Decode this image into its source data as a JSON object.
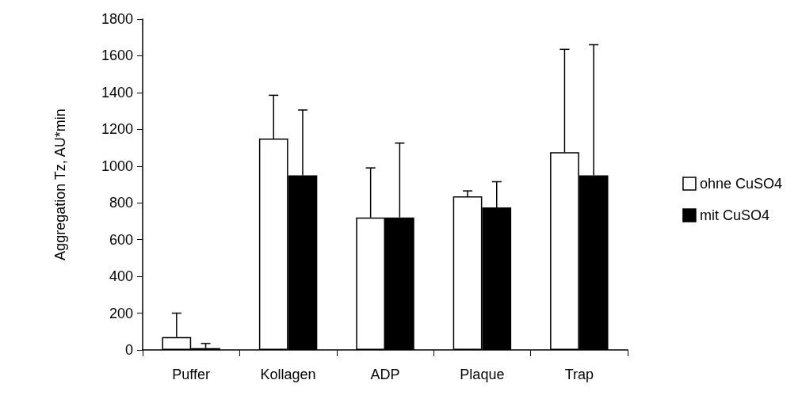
{
  "chart_data": {
    "type": "bar",
    "ylabel": "Aggregation Tz, AU*min",
    "categories": [
      "Puffer",
      "Kollagen",
      "ADP",
      "Plaque",
      "Trap"
    ],
    "series": [
      {
        "name": "ohne CuSO4",
        "color": "#ffffff",
        "values": [
          70,
          1150,
          720,
          835,
          1075
        ],
        "errors": [
          [
            70,
            200
          ],
          [
            1150,
            1385
          ],
          [
            720,
            990
          ],
          [
            835,
            865
          ],
          [
            1075,
            1635
          ]
        ]
      },
      {
        "name": "mit CuSO4",
        "color": "#000000",
        "values": [
          10,
          950,
          720,
          775,
          950
        ],
        "errors": [
          [
            10,
            35
          ],
          [
            950,
            1305
          ],
          [
            720,
            1125
          ],
          [
            775,
            915
          ],
          [
            950,
            1660
          ]
        ]
      }
    ],
    "ylim": [
      0,
      1800
    ],
    "yticks": [
      0,
      200,
      400,
      600,
      800,
      1000,
      1200,
      1400,
      1600,
      1800
    ],
    "grid": false,
    "legend": "right"
  }
}
